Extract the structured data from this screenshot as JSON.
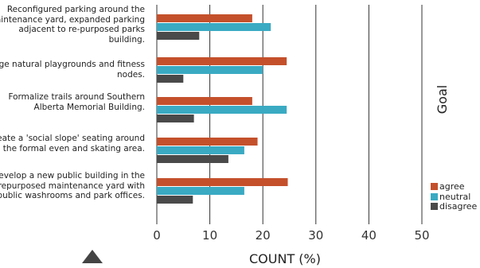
{
  "chart_data": {
    "type": "bar",
    "orientation": "horizontal",
    "categories": [
      "Reconfigured parking around the maintenance yard, expanded parking adjacent to re-purposed parks building.",
      "Large natural playgrounds and fitness nodes.",
      "Formalize trails around Southern Alberta Memorial Building.",
      "Create a 'social slope' seating around the formal even and skating area.",
      "Develop a new public building in the repurposed maintenance yard with public washrooms and park offices."
    ],
    "series": [
      {
        "name": "agree",
        "color": "#c4502b",
        "values": [
          18,
          24.5,
          18,
          19,
          24.7
        ]
      },
      {
        "name": "neutral",
        "color": "#3aaac3",
        "values": [
          21.5,
          20,
          24.5,
          16.5,
          16.5
        ]
      },
      {
        "name": "disagree",
        "color": "#4a4a4a",
        "values": [
          8,
          5,
          7,
          13.5,
          6.8
        ]
      }
    ],
    "xlabel": "COUNT (%)",
    "ylabel": "Goal",
    "xlim": [
      0,
      50
    ],
    "xticks": [
      0,
      10,
      20,
      30,
      40,
      50
    ],
    "grid": "vertical",
    "legend": "bottom-right"
  }
}
